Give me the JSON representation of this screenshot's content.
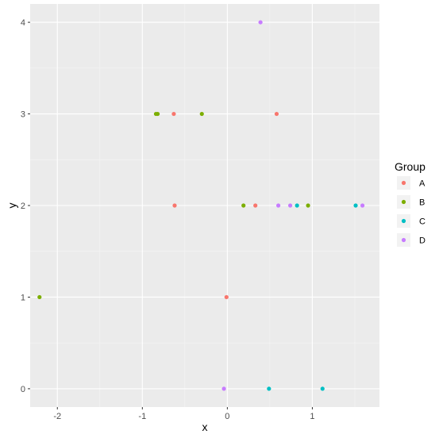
{
  "chart_data": {
    "type": "scatter",
    "title": "",
    "xlabel": "x",
    "ylabel": "y",
    "xlim": [
      -2.32,
      1.79
    ],
    "ylim": [
      -0.2,
      4.2
    ],
    "xticks": [
      -2,
      -1,
      0,
      1
    ],
    "yticks": [
      0,
      1,
      2,
      3,
      4
    ],
    "grid": true,
    "legend": {
      "title": "Group",
      "position": "right"
    },
    "series": [
      {
        "name": "A",
        "color": "#F8766D",
        "points": [
          {
            "x": -0.63,
            "y": 3
          },
          {
            "x": 0.58,
            "y": 3
          },
          {
            "x": -0.62,
            "y": 2
          },
          {
            "x": 0.33,
            "y": 2
          },
          {
            "x": -0.01,
            "y": 1
          }
        ]
      },
      {
        "name": "B",
        "color": "#7CAE00",
        "points": [
          {
            "x": -0.84,
            "y": 3
          },
          {
            "x": -0.82,
            "y": 3
          },
          {
            "x": -0.3,
            "y": 3
          },
          {
            "x": 0.19,
            "y": 2
          },
          {
            "x": 0.95,
            "y": 2
          },
          {
            "x": -2.21,
            "y": 1
          }
        ]
      },
      {
        "name": "C",
        "color": "#00BFC4",
        "points": [
          {
            "x": 0.82,
            "y": 2
          },
          {
            "x": 1.51,
            "y": 2
          },
          {
            "x": 0.49,
            "y": 0
          },
          {
            "x": 1.12,
            "y": 0
          }
        ]
      },
      {
        "name": "D",
        "color": "#C77CFF",
        "points": [
          {
            "x": 0.39,
            "y": 4
          },
          {
            "x": 0.6,
            "y": 2
          },
          {
            "x": 0.74,
            "y": 2
          },
          {
            "x": 1.59,
            "y": 2
          },
          {
            "x": -0.04,
            "y": 0
          }
        ]
      }
    ]
  }
}
